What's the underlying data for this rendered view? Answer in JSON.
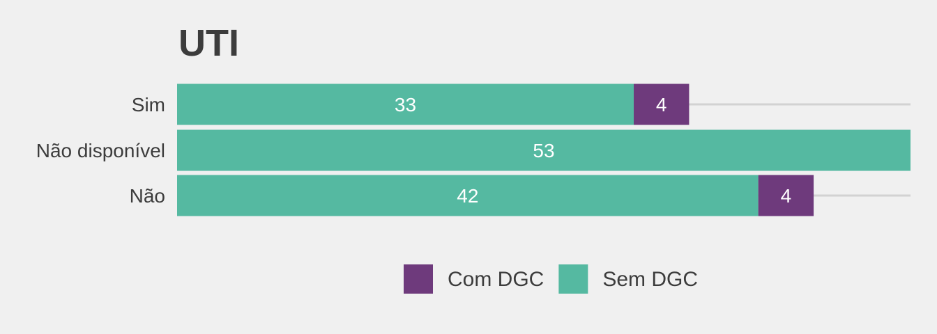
{
  "chart_data": {
    "type": "bar",
    "orientation": "horizontal",
    "stacked": true,
    "title": "UTI",
    "xlabel": "",
    "ylabel": "",
    "categories": [
      "Sim",
      "Não disponível",
      "Não"
    ],
    "series": [
      {
        "name": "Sem DGC",
        "values": [
          33,
          53,
          42
        ],
        "color": "#55b9a1"
      },
      {
        "name": "Com DGC",
        "values": [
          4,
          0,
          4
        ],
        "color": "#6e3a7c"
      }
    ],
    "xlim": [
      0,
      53
    ],
    "grid": false,
    "legend": {
      "position": "bottom",
      "entries": [
        {
          "label": "Com DGC",
          "color": "#6e3a7c"
        },
        {
          "label": "Sem DGC",
          "color": "#55b9a1"
        }
      ]
    }
  }
}
